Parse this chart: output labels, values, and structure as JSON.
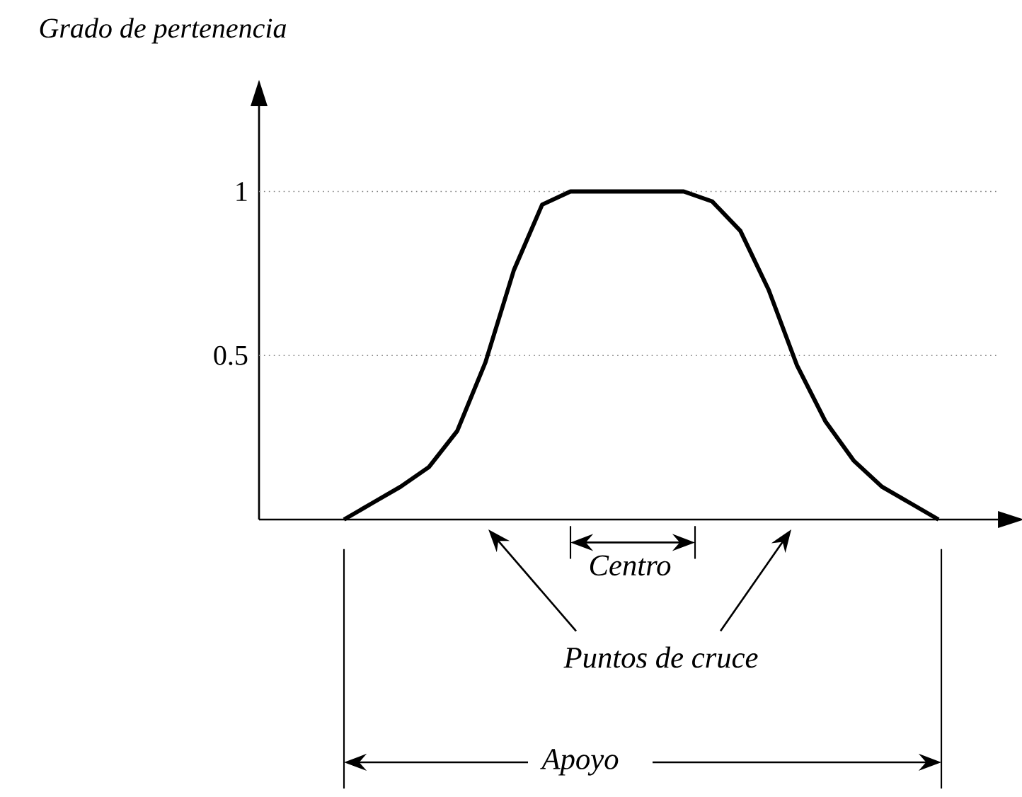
{
  "chart_data": {
    "type": "line",
    "ylabel": "Grado de pertenencia",
    "categories": [
      null,
      null,
      null,
      null,
      null,
      null,
      null,
      null,
      null,
      null,
      null,
      null,
      null,
      null,
      null,
      null,
      null,
      null,
      null,
      null,
      null,
      null,
      null,
      null,
      null,
      null,
      null
    ],
    "series": [
      {
        "color": "#000000",
        "values": [
          null,
          null,
          null,
          0,
          0.05,
          0.1,
          0.16,
          0.27,
          0.48,
          0.76,
          0.96,
          1,
          1,
          1,
          1,
          1,
          0.97,
          0.88,
          0.7,
          0.47,
          0.3,
          0.18,
          0.1,
          0.05,
          0,
          null,
          null
        ]
      }
    ],
    "ylim": [
      0,
      1.26
    ],
    "yticks": [
      0.5,
      1
    ],
    "tick_labels": "y",
    "marker": "none",
    "line_style": "solid",
    "ref_lines": [
      {
        "axis": "y",
        "value": 0.5,
        "line_style": "dotted"
      },
      {
        "axis": "y",
        "value": 1,
        "line_style": "dotted"
      }
    ],
    "annotations": [
      "Centro",
      "Puntos de cruce",
      "Apoyo"
    ]
  }
}
